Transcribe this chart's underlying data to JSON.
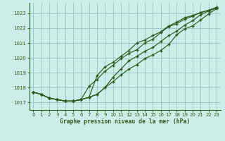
{
  "title": "Graphe pression niveau de la mer (hPa)",
  "bg_color": "#cceee8",
  "grid_color": "#99cccc",
  "line_color": "#2d5a1b",
  "marker_color": "#2d5a1b",
  "xlim": [
    -0.5,
    23.5
  ],
  "ylim": [
    1016.5,
    1023.7
  ],
  "yticks": [
    1017,
    1018,
    1019,
    1020,
    1021,
    1022,
    1023
  ],
  "xticks": [
    0,
    1,
    2,
    3,
    4,
    5,
    6,
    7,
    8,
    9,
    10,
    11,
    12,
    13,
    14,
    15,
    16,
    17,
    18,
    19,
    20,
    21,
    22,
    23
  ],
  "series": [
    [
      1017.7,
      1017.55,
      1017.3,
      1017.2,
      1017.1,
      1017.1,
      1017.2,
      1017.35,
      1017.55,
      1018.0,
      1018.4,
      1018.85,
      1019.25,
      1019.55,
      1019.95,
      1020.2,
      1020.5,
      1020.9,
      1021.55,
      1021.95,
      1022.15,
      1022.55,
      1022.95,
      1023.3
    ],
    [
      1017.7,
      1017.55,
      1017.3,
      1017.2,
      1017.1,
      1017.1,
      1017.2,
      1017.35,
      1017.55,
      1018.0,
      1018.7,
      1019.25,
      1019.8,
      1020.1,
      1020.45,
      1020.7,
      1021.1,
      1021.5,
      1021.8,
      1022.2,
      1022.5,
      1022.9,
      1023.15,
      1023.35
    ],
    [
      1017.7,
      1017.55,
      1017.3,
      1017.2,
      1017.1,
      1017.1,
      1017.2,
      1018.1,
      1018.55,
      1019.1,
      1019.5,
      1019.95,
      1020.3,
      1020.55,
      1021.0,
      1021.25,
      1021.7,
      1022.1,
      1022.3,
      1022.6,
      1022.8,
      1023.05,
      1023.2,
      1023.35
    ],
    [
      1017.7,
      1017.55,
      1017.3,
      1017.2,
      1017.1,
      1017.1,
      1017.2,
      1017.35,
      1018.8,
      1019.4,
      1019.7,
      1020.1,
      1020.5,
      1021.0,
      1021.2,
      1021.5,
      1021.75,
      1022.15,
      1022.4,
      1022.7,
      1022.85,
      1023.05,
      1023.2,
      1023.4
    ]
  ]
}
